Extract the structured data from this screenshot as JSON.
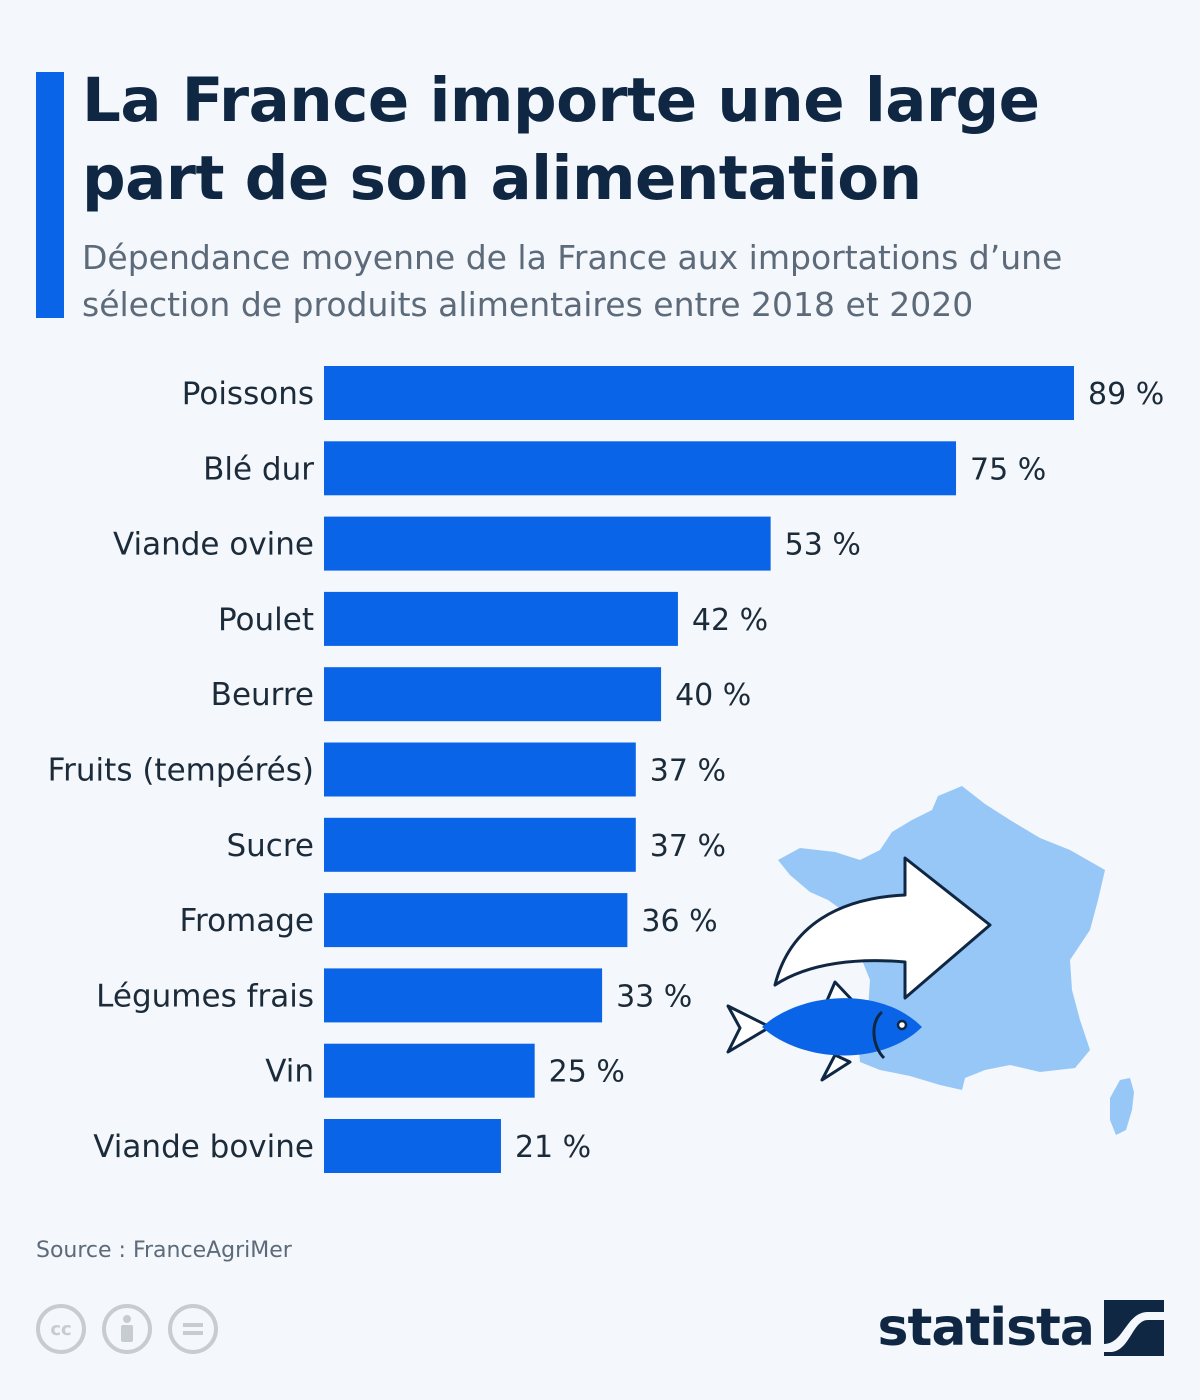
{
  "header": {
    "title": "La France importe une large part de son alimentation",
    "subtitle": "Dépendance moyenne de la France aux importations d’une sélection de produits alimentaires entre 2018 et 2020"
  },
  "chart_data": {
    "type": "bar",
    "orientation": "horizontal",
    "categories": [
      "Poissons",
      "Blé dur",
      "Viande ovine",
      "Poulet",
      "Beurre",
      "Fruits (tempérés)",
      "Sucre",
      "Fromage",
      "Légumes frais",
      "Vin",
      "Viande bovine"
    ],
    "values": [
      89,
      75,
      53,
      42,
      40,
      37,
      37,
      36,
      33,
      25,
      21
    ],
    "value_labels": [
      "89 %",
      "75 %",
      "53 %",
      "42 %",
      "40 %",
      "37 %",
      "37 %",
      "36 %",
      "33 %",
      "25 %",
      "21 %"
    ],
    "unit": "%",
    "xlim": [
      0,
      89
    ],
    "grid": false,
    "bar_color": "#0a64e8"
  },
  "footer": {
    "source": "Source : FranceAgriMer",
    "brand": "statista"
  },
  "icons": {
    "illustration": "france-map-fish-arrow",
    "license": [
      "cc-icon",
      "by-icon",
      "nd-icon"
    ],
    "brand_logo": "statista-logo-icon"
  },
  "colors": {
    "accent": "#0a64e8",
    "map": "#97c7f7",
    "text_dark": "#0f2742",
    "text_muted": "#5c6a7a"
  }
}
